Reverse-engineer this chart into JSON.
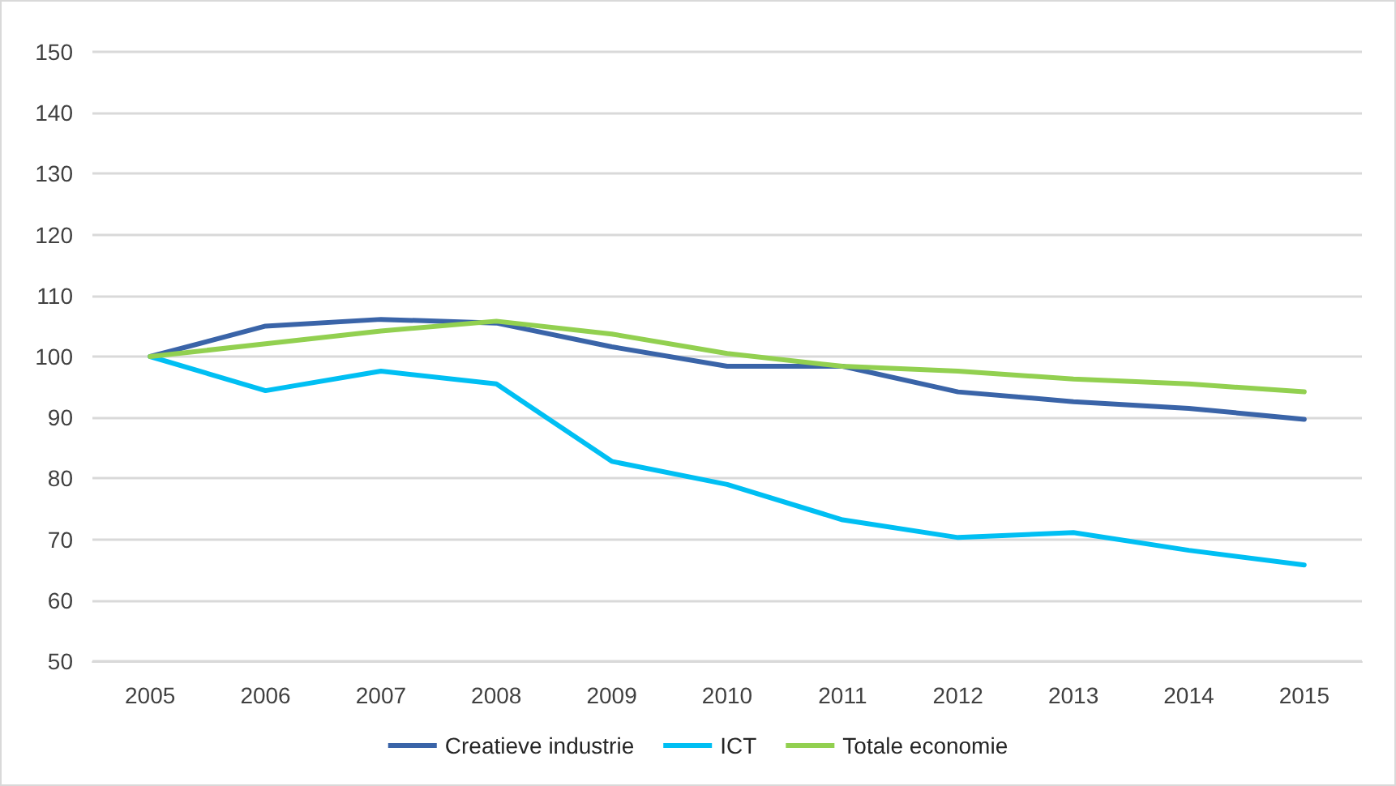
{
  "chart_data": {
    "type": "line",
    "categories": [
      "2005",
      "2006",
      "2007",
      "2008",
      "2009",
      "2010",
      "2011",
      "2012",
      "2013",
      "2014",
      "2015"
    ],
    "series": [
      {
        "name": "Creatieve industrie",
        "color": "#3a64a8",
        "values": [
          100,
          105,
          106.1,
          105.5,
          101.6,
          98.4,
          98.4,
          94.2,
          92.6,
          91.5,
          89.7
        ]
      },
      {
        "name": "ICT",
        "color": "#00bff3",
        "values": [
          100,
          94.4,
          97.6,
          95.5,
          82.8,
          79,
          73.2,
          70.3,
          71.1,
          68.2,
          65.8
        ]
      },
      {
        "name": "Totale economie",
        "color": "#92d050",
        "values": [
          100,
          102.1,
          104.2,
          105.8,
          103.7,
          100.5,
          98.4,
          97.6,
          96.3,
          95.5,
          94.2
        ]
      }
    ],
    "ylim": [
      50,
      150
    ],
    "yticks": [
      50,
      60,
      70,
      80,
      90,
      100,
      110,
      120,
      130,
      140,
      150
    ],
    "grid": "y",
    "legend": "bottom",
    "marker": "none",
    "line_style": "solid"
  }
}
